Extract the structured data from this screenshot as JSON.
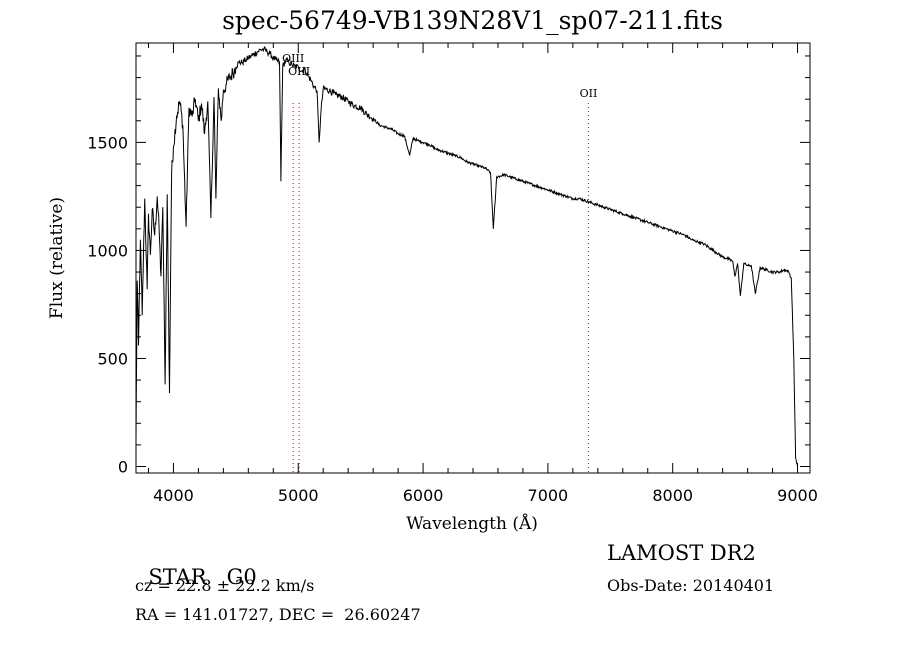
{
  "title": "spec-56749-VB139N28V1_sp07-211.fits",
  "info": {
    "object_class": "STAR",
    "subclass": "G0",
    "survey": "LAMOST DR2",
    "cz_label": "cz = 22.8 ± 22.2 km/s",
    "obs_date": "Obs-Date: 20140401",
    "radec": "RA = 141.01727, DEC =  26.60247"
  },
  "chart_data": {
    "type": "line",
    "title": "spec-56749-VB139N28V1_sp07-211.fits",
    "xlabel": "Wavelength (Å)",
    "ylabel": "Flux (relative)",
    "xlim": [
      3700,
      9100
    ],
    "ylim": [
      -30,
      1960
    ],
    "xticks": [
      4000,
      5000,
      6000,
      7000,
      8000,
      9000
    ],
    "xtick_labels": [
      "4000",
      "5000",
      "6000",
      "7000",
      "8000",
      "9000"
    ],
    "yticks": [
      0,
      500,
      1000,
      1500
    ],
    "ytick_labels": [
      "0",
      "500",
      "1000",
      "1500"
    ],
    "grid": false,
    "series": [
      {
        "x": [
          3700,
          3710,
          3720,
          3735,
          3750,
          3770,
          3790,
          3800,
          3815,
          3830,
          3850,
          3870,
          3885,
          3900,
          3915,
          3933,
          3950,
          3968,
          3985,
          4000,
          4025,
          4050,
          4075,
          4101,
          4125,
          4150,
          4175,
          4200,
          4225,
          4250,
          4275,
          4300,
          4325,
          4340,
          4360,
          4383,
          4400,
          4425,
          4450,
          4475,
          4500,
          4525,
          4550,
          4575,
          4600,
          4625,
          4650,
          4675,
          4700,
          4725,
          4750,
          4775,
          4800,
          4825,
          4850,
          4861,
          4875,
          4900,
          4925,
          4950,
          4975,
          5000,
          5025,
          5050,
          5075,
          5100,
          5125,
          5150,
          5167,
          5183,
          5200,
          5250,
          5300,
          5350,
          5400,
          5450,
          5500,
          5550,
          5600,
          5650,
          5700,
          5750,
          5800,
          5850,
          5893,
          5920,
          5950,
          6000,
          6050,
          6100,
          6150,
          6200,
          6250,
          6300,
          6350,
          6400,
          6450,
          6500,
          6540,
          6563,
          6590,
          6650,
          6700,
          6750,
          6800,
          6850,
          6900,
          6950,
          7000,
          7050,
          7100,
          7150,
          7200,
          7250,
          7300,
          7350,
          7400,
          7450,
          7500,
          7550,
          7600,
          7650,
          7700,
          7750,
          7800,
          7850,
          7900,
          7950,
          8000,
          8050,
          8100,
          8150,
          8200,
          8250,
          8300,
          8350,
          8400,
          8450,
          8480,
          8498,
          8520,
          8542,
          8570,
          8600,
          8630,
          8662,
          8700,
          8750,
          8800,
          8850,
          8900,
          8930,
          8950,
          8970,
          8985,
          9000
        ],
        "y": [
          120,
          860,
          560,
          1050,
          700,
          1240,
          820,
          1170,
          980,
          1190,
          1070,
          1250,
          1100,
          880,
          1200,
          380,
          1260,
          340,
          1350,
          1480,
          1620,
          1690,
          1580,
          1110,
          1660,
          1620,
          1700,
          1600,
          1680,
          1540,
          1690,
          1150,
          1710,
          1240,
          1750,
          1600,
          1740,
          1770,
          1800,
          1820,
          1850,
          1870,
          1870,
          1880,
          1890,
          1900,
          1910,
          1920,
          1930,
          1930,
          1920,
          1910,
          1890,
          1880,
          1870,
          1320,
          1850,
          1880,
          1870,
          1860,
          1850,
          1850,
          1830,
          1840,
          1810,
          1790,
          1760,
          1740,
          1500,
          1650,
          1750,
          1740,
          1720,
          1710,
          1690,
          1670,
          1660,
          1630,
          1610,
          1580,
          1570,
          1560,
          1540,
          1530,
          1440,
          1520,
          1510,
          1500,
          1490,
          1470,
          1460,
          1450,
          1440,
          1430,
          1410,
          1400,
          1390,
          1380,
          1360,
          1100,
          1340,
          1350,
          1340,
          1330,
          1320,
          1310,
          1300,
          1290,
          1280,
          1270,
          1260,
          1250,
          1240,
          1240,
          1230,
          1220,
          1210,
          1200,
          1190,
          1180,
          1170,
          1160,
          1150,
          1140,
          1130,
          1120,
          1110,
          1100,
          1090,
          1080,
          1070,
          1050,
          1040,
          1030,
          1010,
          990,
          970,
          960,
          950,
          880,
          940,
          790,
          940,
          930,
          930,
          800,
          920,
          910,
          900,
          900,
          910,
          900,
          870,
          500,
          40,
          0
        ]
      }
    ],
    "lines": [
      {
        "label": "OIII",
        "x": 4959
      },
      {
        "label": "OIII",
        "x": 5007
      },
      {
        "label": "OII",
        "x": 7325
      }
    ]
  }
}
